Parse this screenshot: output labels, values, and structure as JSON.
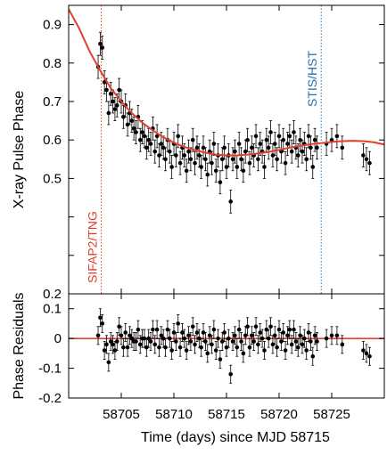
{
  "chart_data": [
    {
      "type": "scatter",
      "ylabel": "X-ray Pulse Phase",
      "ylim": [
        0.2,
        0.95
      ],
      "xlim": [
        58700,
        58730
      ],
      "yticks": [
        0.2,
        0.3,
        0.4,
        0.5,
        0.6,
        0.7,
        0.8,
        0.9
      ],
      "ytick_labels": [
        "0.2",
        "",
        "",
        "0.5",
        "0.6",
        "0.7",
        "0.8",
        "0.9"
      ],
      "annotations": [
        {
          "text": "SIFAP2/TNG",
          "x": 58703.1,
          "color": "#e2402a"
        },
        {
          "text": "STIS/HST",
          "x": 58724.0,
          "color": "#1f6fb2"
        }
      ],
      "series": [
        {
          "kind": "errorbar-points",
          "color": "#000000",
          "x": [
            58702.8,
            58703.0,
            58703.2,
            58703.4,
            58703.6,
            58703.8,
            58704.0,
            58704.2,
            58704.4,
            58704.6,
            58704.8,
            58705.0,
            58705.2,
            58705.4,
            58705.6,
            58705.8,
            58706.0,
            58706.2,
            58706.4,
            58706.6,
            58706.8,
            58707.0,
            58707.2,
            58707.4,
            58707.6,
            58707.8,
            58708.0,
            58708.2,
            58708.4,
            58708.6,
            58708.8,
            58709.0,
            58709.2,
            58709.4,
            58709.6,
            58709.8,
            58710.0,
            58710.2,
            58710.4,
            58710.6,
            58710.8,
            58711.0,
            58711.2,
            58711.4,
            58711.6,
            58711.8,
            58712.0,
            58712.2,
            58712.4,
            58712.6,
            58712.8,
            58713.0,
            58713.2,
            58713.4,
            58713.6,
            58713.8,
            58714.0,
            58714.2,
            58714.4,
            58714.6,
            58714.8,
            58715.0,
            58715.2,
            58715.4,
            58715.6,
            58715.8,
            58716.0,
            58716.2,
            58716.4,
            58716.6,
            58716.8,
            58717.0,
            58717.2,
            58717.4,
            58717.6,
            58717.8,
            58718.0,
            58718.2,
            58718.4,
            58718.6,
            58718.8,
            58719.0,
            58719.2,
            58719.4,
            58719.6,
            58719.8,
            58720.0,
            58720.2,
            58720.4,
            58720.6,
            58720.8,
            58721.0,
            58721.2,
            58721.4,
            58721.6,
            58721.8,
            58722.0,
            58722.2,
            58722.4,
            58722.6,
            58722.8,
            58723.0,
            58723.2,
            58723.4,
            58723.6,
            58724.5,
            58725.0,
            58725.5,
            58726.0,
            58728.0,
            58728.3,
            58728.6
          ],
          "y": [
            0.79,
            0.85,
            0.84,
            0.75,
            0.73,
            0.67,
            0.72,
            0.7,
            0.68,
            0.69,
            0.73,
            0.7,
            0.66,
            0.69,
            0.64,
            0.67,
            0.65,
            0.63,
            0.62,
            0.66,
            0.6,
            0.62,
            0.61,
            0.58,
            0.6,
            0.59,
            0.63,
            0.57,
            0.61,
            0.56,
            0.59,
            0.58,
            0.55,
            0.6,
            0.57,
            0.53,
            0.59,
            0.56,
            0.61,
            0.54,
            0.58,
            0.56,
            0.52,
            0.57,
            0.55,
            0.6,
            0.54,
            0.58,
            0.56,
            0.53,
            0.58,
            0.55,
            0.51,
            0.57,
            0.54,
            0.59,
            0.52,
            0.56,
            0.49,
            0.55,
            0.58,
            0.53,
            0.56,
            0.44,
            0.55,
            0.57,
            0.53,
            0.59,
            0.55,
            0.52,
            0.57,
            0.6,
            0.54,
            0.58,
            0.56,
            0.61,
            0.55,
            0.59,
            0.57,
            0.53,
            0.6,
            0.58,
            0.62,
            0.56,
            0.59,
            0.55,
            0.61,
            0.57,
            0.6,
            0.54,
            0.59,
            0.61,
            0.57,
            0.62,
            0.58,
            0.56,
            0.6,
            0.57,
            0.59,
            0.55,
            0.61,
            0.58,
            0.53,
            0.6,
            0.58,
            0.59,
            0.6,
            0.61,
            0.58,
            0.56,
            0.55,
            0.54
          ],
          "yerr": [
            0.03,
            0.03,
            0.03,
            0.03,
            0.03,
            0.03,
            0.03,
            0.03,
            0.03,
            0.03,
            0.03,
            0.03,
            0.03,
            0.03,
            0.03,
            0.03,
            0.03,
            0.03,
            0.03,
            0.03,
            0.03,
            0.03,
            0.03,
            0.03,
            0.03,
            0.03,
            0.03,
            0.03,
            0.03,
            0.03,
            0.03,
            0.03,
            0.03,
            0.03,
            0.03,
            0.03,
            0.03,
            0.03,
            0.03,
            0.03,
            0.03,
            0.03,
            0.03,
            0.03,
            0.03,
            0.03,
            0.03,
            0.03,
            0.03,
            0.03,
            0.03,
            0.03,
            0.03,
            0.03,
            0.03,
            0.03,
            0.03,
            0.03,
            0.03,
            0.03,
            0.03,
            0.03,
            0.03,
            0.03,
            0.03,
            0.03,
            0.03,
            0.03,
            0.03,
            0.03,
            0.03,
            0.03,
            0.03,
            0.03,
            0.03,
            0.03,
            0.03,
            0.03,
            0.03,
            0.03,
            0.03,
            0.03,
            0.03,
            0.03,
            0.03,
            0.03,
            0.03,
            0.03,
            0.03,
            0.03,
            0.03,
            0.03,
            0.03,
            0.03,
            0.03,
            0.03,
            0.03,
            0.03,
            0.03,
            0.03,
            0.03,
            0.03,
            0.03,
            0.03,
            0.03,
            0.03,
            0.03,
            0.03,
            0.03,
            0.03,
            0.03,
            0.03
          ]
        },
        {
          "kind": "fit-curve",
          "color": "#e2402a",
          "x": [
            58700.0,
            58701.0,
            58702.0,
            58703.0,
            58704.0,
            58705.0,
            58706.0,
            58707.0,
            58708.0,
            58709.0,
            58710.0,
            58711.0,
            58712.0,
            58713.0,
            58714.0,
            58715.0,
            58716.0,
            58717.0,
            58718.0,
            58719.0,
            58720.0,
            58721.0,
            58722.0,
            58723.0,
            58724.0,
            58725.0,
            58726.0,
            58727.0,
            58728.0,
            58729.0,
            58730.0
          ],
          "y": [
            0.94,
            0.89,
            0.83,
            0.78,
            0.735,
            0.7,
            0.67,
            0.645,
            0.625,
            0.607,
            0.593,
            0.582,
            0.574,
            0.567,
            0.562,
            0.56,
            0.56,
            0.562,
            0.565,
            0.569,
            0.574,
            0.58,
            0.585,
            0.589,
            0.592,
            0.595,
            0.597,
            0.598,
            0.597,
            0.594,
            0.588
          ]
        }
      ]
    },
    {
      "type": "scatter",
      "xlabel": "Time (days) since MJD 58715",
      "ylabel": "Phase Residuals",
      "ylim": [
        -0.2,
        0.15
      ],
      "xlim": [
        58700,
        58730
      ],
      "yticks": [
        -0.2,
        -0.1,
        0,
        0.1
      ],
      "ytick_labels": [
        "-0.2",
        "-0.1",
        "0",
        "0.1"
      ],
      "xticks": [
        58705,
        58710,
        58715,
        58720,
        58725
      ],
      "xtick_labels": [
        "58705",
        "58710",
        "58715",
        "58720",
        "58725"
      ],
      "zero_line_color": "#e2402a",
      "series": [
        {
          "kind": "errorbar-points",
          "color": "#000000",
          "x": [
            58702.8,
            58703.0,
            58703.2,
            58703.4,
            58703.6,
            58703.8,
            58704.0,
            58704.2,
            58704.4,
            58704.6,
            58704.8,
            58705.0,
            58705.2,
            58705.4,
            58705.6,
            58705.8,
            58706.0,
            58706.2,
            58706.4,
            58706.6,
            58706.8,
            58707.0,
            58707.2,
            58707.4,
            58707.6,
            58707.8,
            58708.0,
            58708.2,
            58708.4,
            58708.6,
            58708.8,
            58709.0,
            58709.2,
            58709.4,
            58709.6,
            58709.8,
            58710.0,
            58710.2,
            58710.4,
            58710.6,
            58710.8,
            58711.0,
            58711.2,
            58711.4,
            58711.6,
            58711.8,
            58712.0,
            58712.2,
            58712.4,
            58712.6,
            58712.8,
            58713.0,
            58713.2,
            58713.4,
            58713.6,
            58713.8,
            58714.0,
            58714.2,
            58714.4,
            58714.6,
            58714.8,
            58715.0,
            58715.2,
            58715.4,
            58715.6,
            58715.8,
            58716.0,
            58716.2,
            58716.4,
            58716.6,
            58716.8,
            58717.0,
            58717.2,
            58717.4,
            58717.6,
            58717.8,
            58718.0,
            58718.2,
            58718.4,
            58718.6,
            58718.8,
            58719.0,
            58719.2,
            58719.4,
            58719.6,
            58719.8,
            58720.0,
            58720.2,
            58720.4,
            58720.6,
            58720.8,
            58721.0,
            58721.2,
            58721.4,
            58721.6,
            58721.8,
            58722.0,
            58722.2,
            58722.4,
            58722.6,
            58722.8,
            58723.0,
            58723.2,
            58723.4,
            58723.6,
            58724.5,
            58725.0,
            58725.5,
            58726.0,
            58728.0,
            58728.3,
            58728.6
          ],
          "y": [
            0.01,
            0.07,
            0.05,
            -0.04,
            -0.02,
            -0.08,
            -0.01,
            -0.02,
            -0.04,
            -0.01,
            0.04,
            0.01,
            -0.03,
            0.02,
            -0.03,
            0.01,
            0.0,
            -0.01,
            -0.01,
            0.03,
            -0.02,
            0.0,
            0.0,
            -0.03,
            0.0,
            -0.01,
            0.03,
            -0.02,
            0.03,
            -0.03,
            0.01,
            0.0,
            -0.03,
            0.03,
            0.0,
            -0.04,
            0.02,
            -0.01,
            0.05,
            -0.03,
            0.02,
            0.0,
            -0.04,
            0.01,
            -0.01,
            0.04,
            -0.02,
            0.02,
            0.0,
            -0.03,
            0.02,
            -0.01,
            -0.05,
            0.01,
            -0.02,
            0.03,
            -0.04,
            0.0,
            -0.07,
            -0.01,
            0.02,
            -0.03,
            0.0,
            -0.12,
            -0.01,
            0.01,
            -0.03,
            0.03,
            -0.01,
            -0.05,
            0.01,
            0.04,
            -0.03,
            0.01,
            -0.01,
            0.04,
            -0.02,
            0.02,
            0.0,
            -0.04,
            0.03,
            0.0,
            0.04,
            -0.02,
            0.01,
            -0.03,
            0.03,
            -0.01,
            0.02,
            -0.04,
            0.01,
            0.03,
            -0.02,
            0.03,
            -0.01,
            -0.03,
            0.01,
            -0.02,
            0.0,
            -0.04,
            0.02,
            -0.01,
            -0.06,
            0.01,
            -0.01,
            0.0,
            0.01,
            0.01,
            -0.02,
            -0.04,
            -0.05,
            -0.06
          ],
          "yerr": [
            0.03,
            0.03,
            0.03,
            0.03,
            0.03,
            0.03,
            0.03,
            0.03,
            0.03,
            0.03,
            0.03,
            0.03,
            0.03,
            0.03,
            0.03,
            0.03,
            0.03,
            0.03,
            0.03,
            0.03,
            0.03,
            0.03,
            0.03,
            0.03,
            0.03,
            0.03,
            0.03,
            0.03,
            0.03,
            0.03,
            0.03,
            0.03,
            0.03,
            0.03,
            0.03,
            0.03,
            0.03,
            0.03,
            0.03,
            0.03,
            0.03,
            0.03,
            0.03,
            0.03,
            0.03,
            0.03,
            0.03,
            0.03,
            0.03,
            0.03,
            0.03,
            0.03,
            0.03,
            0.03,
            0.03,
            0.03,
            0.03,
            0.03,
            0.03,
            0.03,
            0.03,
            0.03,
            0.03,
            0.03,
            0.03,
            0.03,
            0.03,
            0.03,
            0.03,
            0.03,
            0.03,
            0.03,
            0.03,
            0.03,
            0.03,
            0.03,
            0.03,
            0.03,
            0.03,
            0.03,
            0.03,
            0.03,
            0.03,
            0.03,
            0.03,
            0.03,
            0.03,
            0.03,
            0.03,
            0.03,
            0.03,
            0.03,
            0.03,
            0.03,
            0.03,
            0.03,
            0.03,
            0.03,
            0.03,
            0.03,
            0.03,
            0.03,
            0.03,
            0.03,
            0.03,
            0.03,
            0.03,
            0.03,
            0.03,
            0.03,
            0.03,
            0.03
          ]
        }
      ]
    }
  ]
}
